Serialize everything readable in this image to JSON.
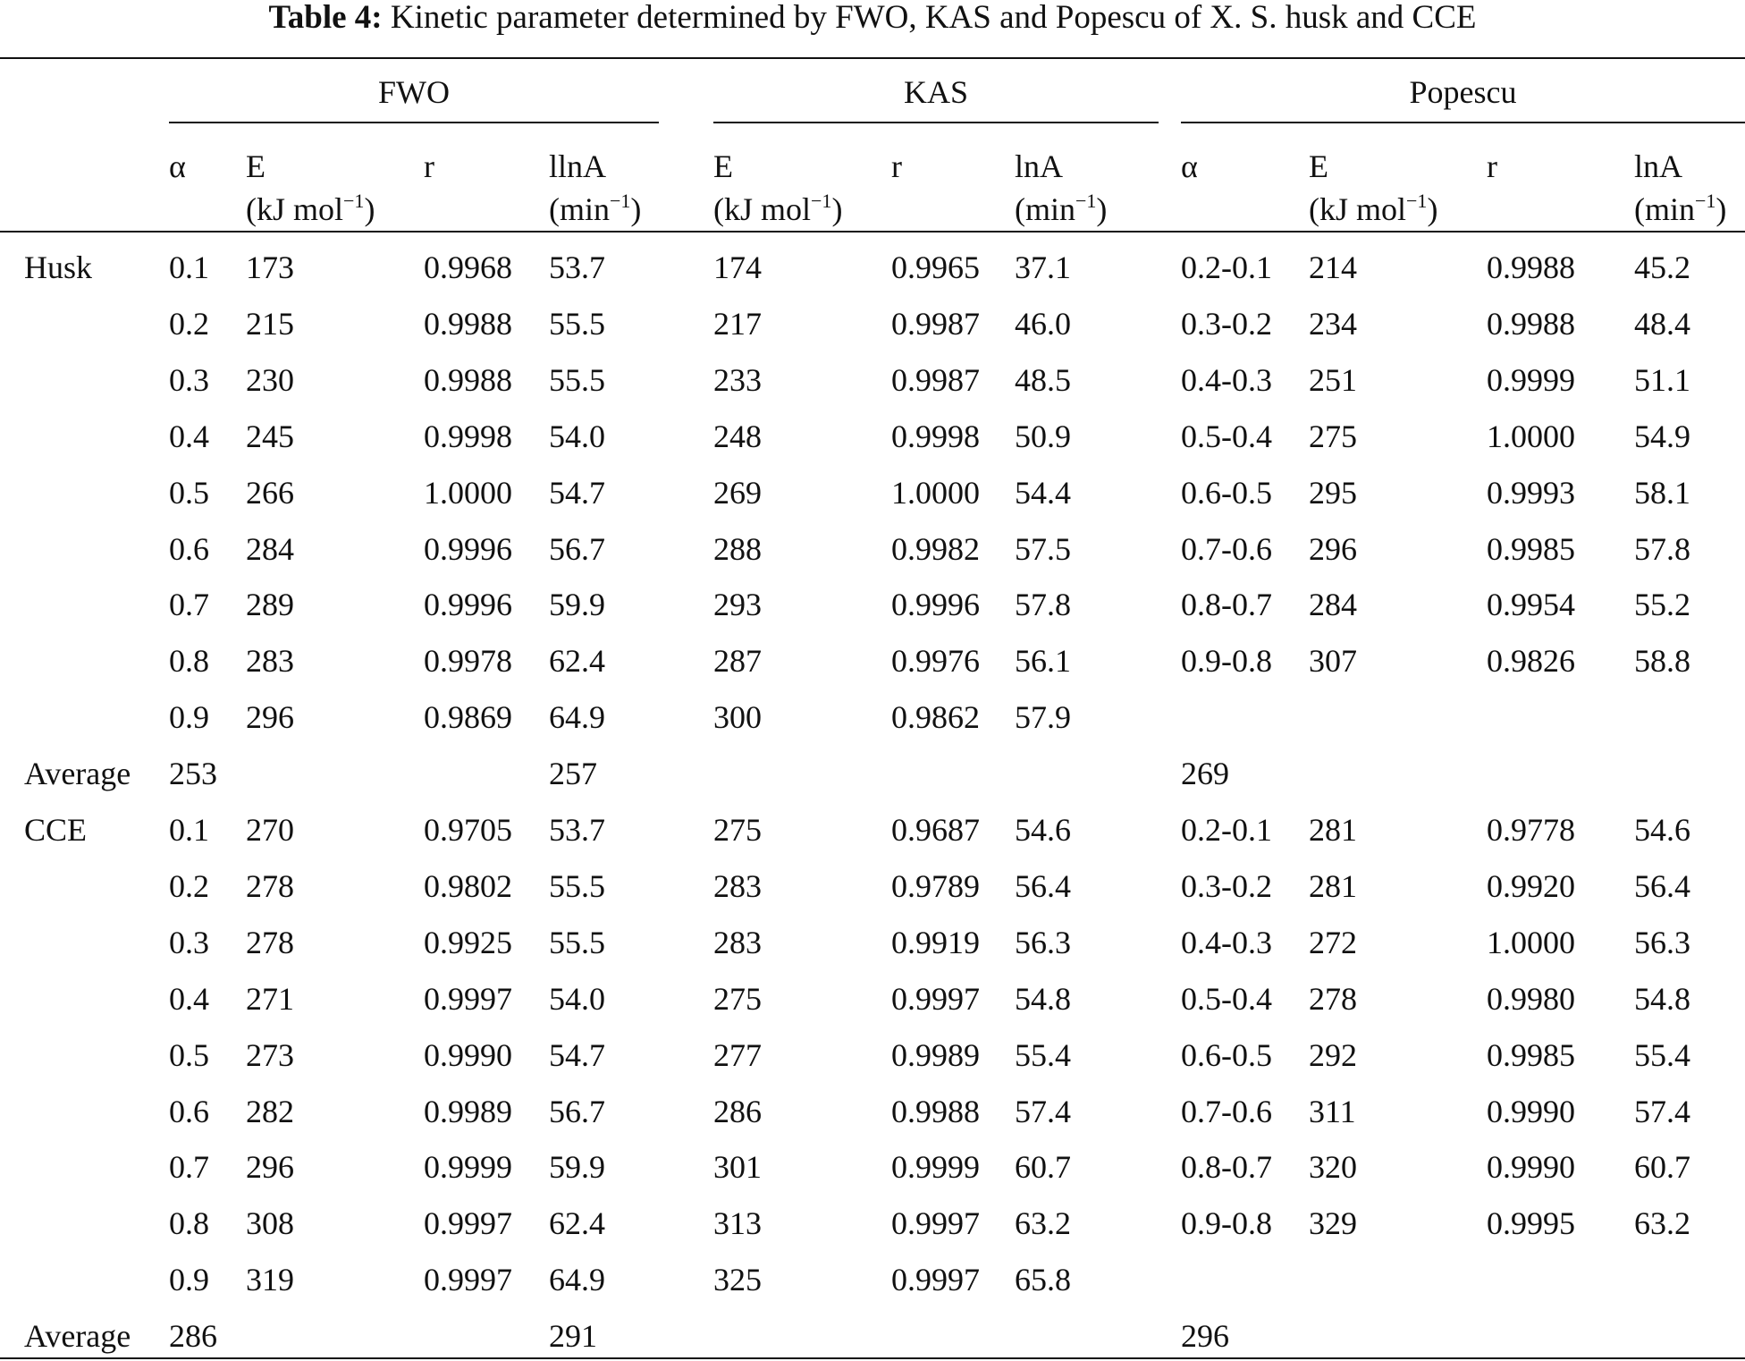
{
  "title": {
    "label": "Table 4:",
    "text": "Kinetic parameter determined by FWO, KAS and Popescu of X. S. husk and CCE"
  },
  "groups": [
    "FWO",
    "KAS",
    "Popescu"
  ],
  "columns": [
    {
      "name": "α"
    },
    {
      "name": "E",
      "unit": "(kJ mol",
      "sup": "−1",
      "end": ")"
    },
    {
      "name": "r"
    },
    {
      "name": "llnA",
      "unit": "(min",
      "sup": "−1",
      "end": ")"
    },
    {
      "name": "E",
      "unit": "(kJ mol",
      "sup": "−1",
      "end": ")"
    },
    {
      "name": "r"
    },
    {
      "name": "lnA",
      "unit": "(min",
      "sup": "−1",
      "end": ")"
    },
    {
      "name": "α"
    },
    {
      "name": "E",
      "unit": "(kJ mol",
      "sup": "−1",
      "end": ")"
    },
    {
      "name": "r"
    },
    {
      "name": "lnA",
      "unit": "(min",
      "sup": "−1",
      "end": ")"
    }
  ],
  "table": {
    "rows": [
      [
        "Husk",
        "0.1",
        "173",
        "0.9968",
        "53.7",
        "174",
        "0.9965",
        "37.1",
        "0.2-0.1",
        "214",
        "0.9988",
        "45.2"
      ],
      [
        null,
        "0.2",
        "215",
        "0.9988",
        "55.5",
        "217",
        "0.9987",
        "46.0",
        "0.3-0.2",
        "234",
        "0.9988",
        "48.4"
      ],
      [
        null,
        "0.3",
        "230",
        "0.9988",
        "55.5",
        "233",
        "0.9987",
        "48.5",
        "0.4-0.3",
        "251",
        "0.9999",
        "51.1"
      ],
      [
        null,
        "0.4",
        "245",
        "0.9998",
        "54.0",
        "248",
        "0.9998",
        "50.9",
        "0.5-0.4",
        "275",
        "1.0000",
        "54.9"
      ],
      [
        null,
        "0.5",
        "266",
        "1.0000",
        "54.7",
        "269",
        "1.0000",
        "54.4",
        "0.6-0.5",
        "295",
        "0.9993",
        "58.1"
      ],
      [
        null,
        "0.6",
        "284",
        "0.9996",
        "56.7",
        "288",
        "0.9982",
        "57.5",
        "0.7-0.6",
        "296",
        "0.9985",
        "57.8"
      ],
      [
        null,
        "0.7",
        "289",
        "0.9996",
        "59.9",
        "293",
        "0.9996",
        "57.8",
        "0.8-0.7",
        "284",
        "0.9954",
        "55.2"
      ],
      [
        null,
        "0.8",
        "283",
        "0.9978",
        "62.4",
        "287",
        "0.9976",
        "56.1",
        "0.9-0.8",
        "307",
        "0.9826",
        "58.8"
      ],
      [
        null,
        "0.9",
        "296",
        "0.9869",
        "64.9",
        "300",
        "0.9862",
        "57.9",
        null,
        null,
        null,
        null
      ],
      [
        "Average",
        "253",
        null,
        null,
        "257",
        null,
        null,
        null,
        "269",
        null,
        null,
        null
      ],
      [
        "CCE",
        "0.1",
        "270",
        "0.9705",
        "53.7",
        "275",
        "0.9687",
        "54.6",
        "0.2-0.1",
        "281",
        "0.9778",
        "54.6"
      ],
      [
        null,
        "0.2",
        "278",
        "0.9802",
        "55.5",
        "283",
        "0.9789",
        "56.4",
        "0.3-0.2",
        "281",
        "0.9920",
        "56.4"
      ],
      [
        null,
        "0.3",
        "278",
        "0.9925",
        "55.5",
        "283",
        "0.9919",
        "56.3",
        "0.4-0.3",
        "272",
        "1.0000",
        "56.3"
      ],
      [
        null,
        "0.4",
        "271",
        "0.9997",
        "54.0",
        "275",
        "0.9997",
        "54.8",
        "0.5-0.4",
        "278",
        "0.9980",
        "54.8"
      ],
      [
        null,
        "0.5",
        "273",
        "0.9990",
        "54.7",
        "277",
        "0.9989",
        "55.4",
        "0.6-0.5",
        "292",
        "0.9985",
        "55.4"
      ],
      [
        null,
        "0.6",
        "282",
        "0.9989",
        "56.7",
        "286",
        "0.9988",
        "57.4",
        "0.7-0.6",
        "311",
        "0.9990",
        "57.4"
      ],
      [
        null,
        "0.7",
        "296",
        "0.9999",
        "59.9",
        "301",
        "0.9999",
        "60.7",
        "0.8-0.7",
        "320",
        "0.9990",
        "60.7"
      ],
      [
        null,
        "0.8",
        "308",
        "0.9997",
        "62.4",
        "313",
        "0.9997",
        "63.2",
        "0.9-0.8",
        "329",
        "0.9995",
        "63.2"
      ],
      [
        null,
        "0.9",
        "319",
        "0.9997",
        "64.9",
        "325",
        "0.9997",
        "65.8",
        null,
        null,
        null,
        null
      ],
      [
        "Average",
        "286",
        null,
        null,
        "291",
        null,
        null,
        null,
        "296",
        null,
        null,
        null
      ]
    ]
  }
}
